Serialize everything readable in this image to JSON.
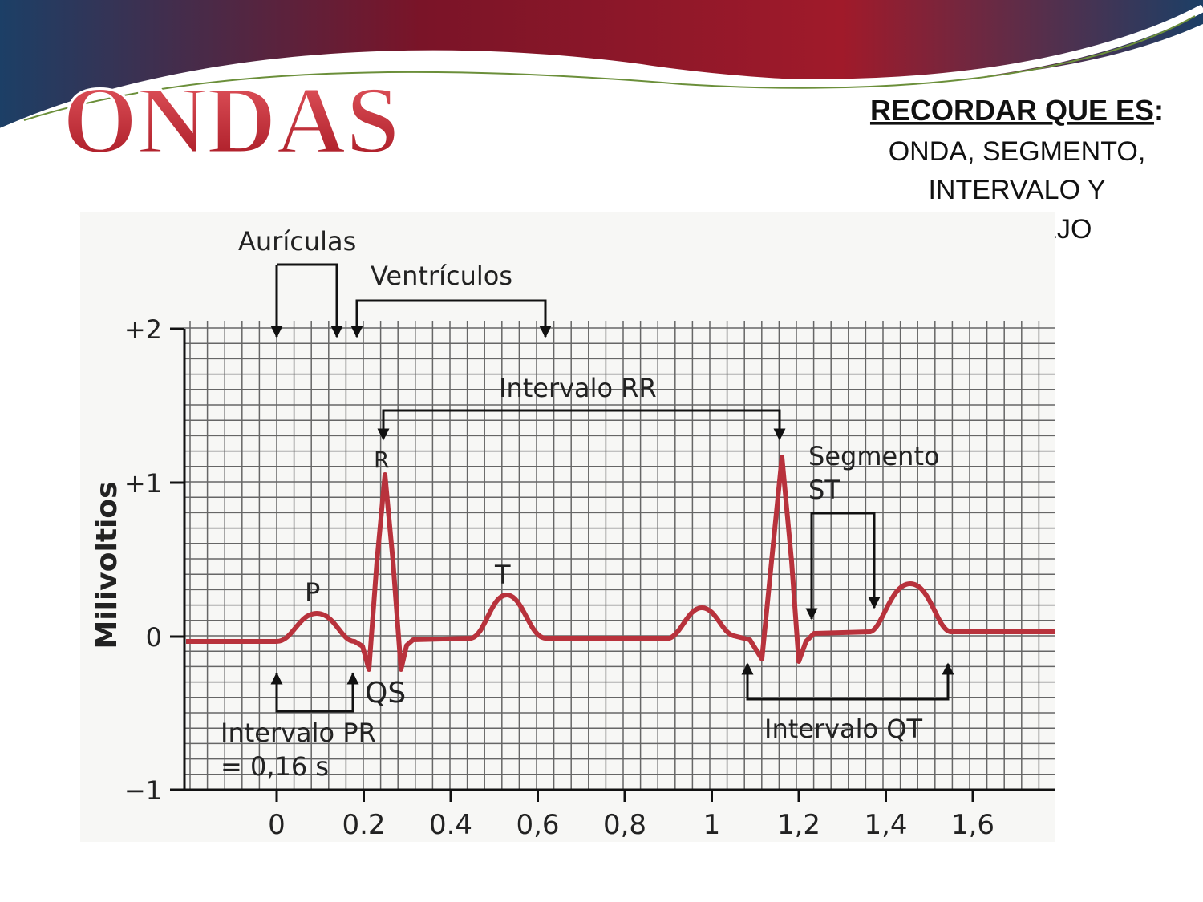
{
  "title": "ONDAS",
  "note": {
    "heading": "RECORDAR QUE ES",
    "punct": ":",
    "lines": [
      "ONDA, SEGMENTO,",
      "INTERVALO Y",
      "COMPLEJO"
    ]
  },
  "figure": {
    "y_axis_title": "Milivoltios",
    "y_ticks": [
      "+2",
      "+1",
      "0",
      "−1"
    ],
    "x_ticks": [
      "0",
      "0.2",
      "0.4",
      "0,6",
      "0,8",
      "1",
      "1,2",
      "1,4",
      "1,6"
    ],
    "labels": {
      "atria": "Aurículas",
      "ventricles": "Ventrículos",
      "rr": "Intervalo RR",
      "r": "R",
      "st_1": "Segmento",
      "st_2": "ST",
      "p": "P",
      "t": "T",
      "qs": "QS",
      "pr": "Intervalo PR",
      "pr_value": "= 0,16 s",
      "qt": "Intervalo QT"
    }
  }
}
